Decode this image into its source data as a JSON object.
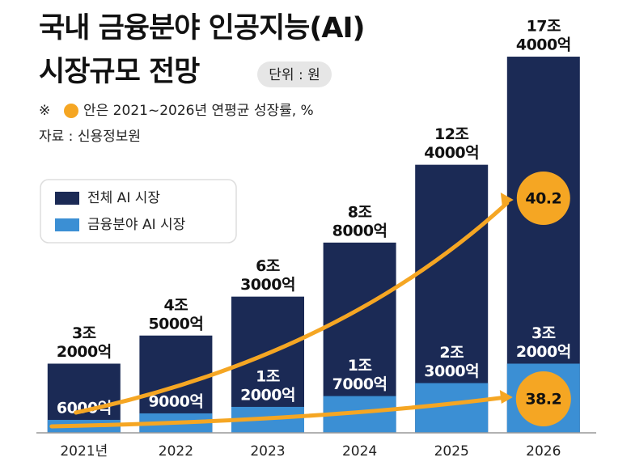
{
  "chart_data": {
    "type": "bar",
    "bar_mode": "overlay",
    "title_lines": [
      "국내 금융분야 인공지능(AI)",
      "시장규모 전망"
    ],
    "unit_badge": "단위 : 원",
    "note_prefix": "※",
    "note": "안은 2021~2026년 연평균 성장률, %",
    "source": "자료 : 신용정보원",
    "categories": [
      "2021년",
      "2022",
      "2023",
      "2024",
      "2025",
      "2026"
    ],
    "ylim": [
      0,
      180000
    ],
    "series": [
      {
        "name": "전체 AI 시장",
        "color": "#1b2a55",
        "label_color": "#111111",
        "values": [
          32000,
          45000,
          63000,
          88000,
          124000,
          174000
        ],
        "value_labels": [
          [
            "3조",
            "2000억"
          ],
          [
            "4조",
            "5000억"
          ],
          [
            "6조",
            "3000억"
          ],
          [
            "8조",
            "8000억"
          ],
          [
            "12조",
            "4000억"
          ],
          [
            "17조",
            "4000억"
          ]
        ],
        "growth_rate": 40.2
      },
      {
        "name": "금융분야 AI 시장",
        "color": "#3b8fd4",
        "label_color": "#ffffff",
        "values": [
          6000,
          9000,
          12000,
          17000,
          23000,
          32000
        ],
        "value_labels": [
          [
            "6000억"
          ],
          [
            "9000억"
          ],
          [
            "1조",
            "2000억"
          ],
          [
            "1조",
            "7000억"
          ],
          [
            "2조",
            "3000억"
          ],
          [
            "3조",
            "2000억"
          ]
        ],
        "growth_rate": 38.2
      }
    ],
    "growth_color": "#f5a623"
  }
}
